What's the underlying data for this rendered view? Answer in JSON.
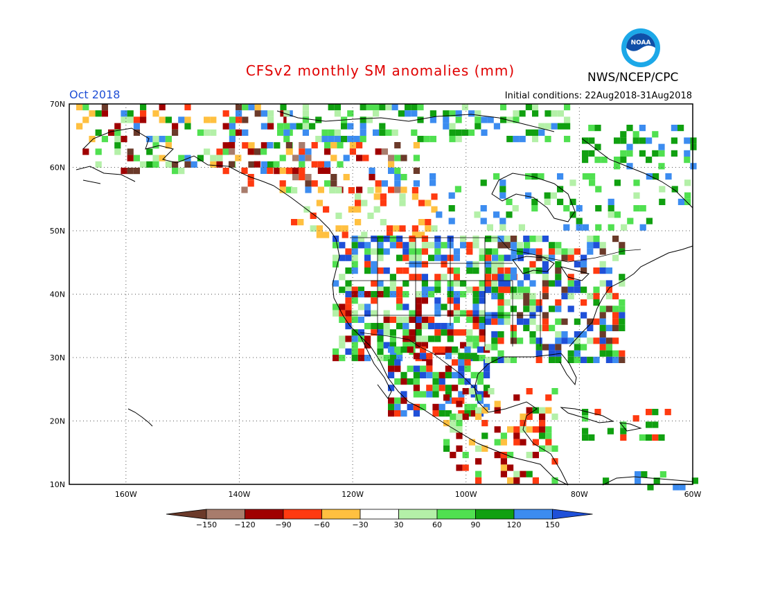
{
  "title": "CFSv2 monthly SM anomalies (mm)",
  "period": "Oct 2018",
  "initial_conditions": "Initial conditions: 22Aug2018-31Aug2018",
  "agency": "NWS/NCEP/CPC",
  "logo": {
    "text": "NOAA",
    "colors": {
      "outer": "#1ca8e8",
      "inner": "#0f4fa8",
      "ring": "#ffffff"
    }
  },
  "map": {
    "projection": "lat-lon",
    "lon_range": [
      -170,
      -60
    ],
    "lat_range": [
      10,
      70
    ],
    "grid_lines": "dotted",
    "lat_ticks": [
      "70N",
      "60N",
      "50N",
      "40N",
      "30N",
      "20N",
      "10N"
    ],
    "lon_ticks": [
      "160W",
      "140W",
      "120W",
      "100W",
      "80W",
      "60W"
    ]
  },
  "colorbar": {
    "labels": [
      "−150",
      "−120",
      "−90",
      "−60",
      "−30",
      "30",
      "60",
      "90",
      "120",
      "150"
    ],
    "colors": [
      "#6b3a2a",
      "#a87c6c",
      "#a00000",
      "#ff3a10",
      "#ffc040",
      "#ffffff",
      "#b4f0a8",
      "#50e050",
      "#10a010",
      "#3c8cf0",
      "#1f50d8"
    ]
  }
}
